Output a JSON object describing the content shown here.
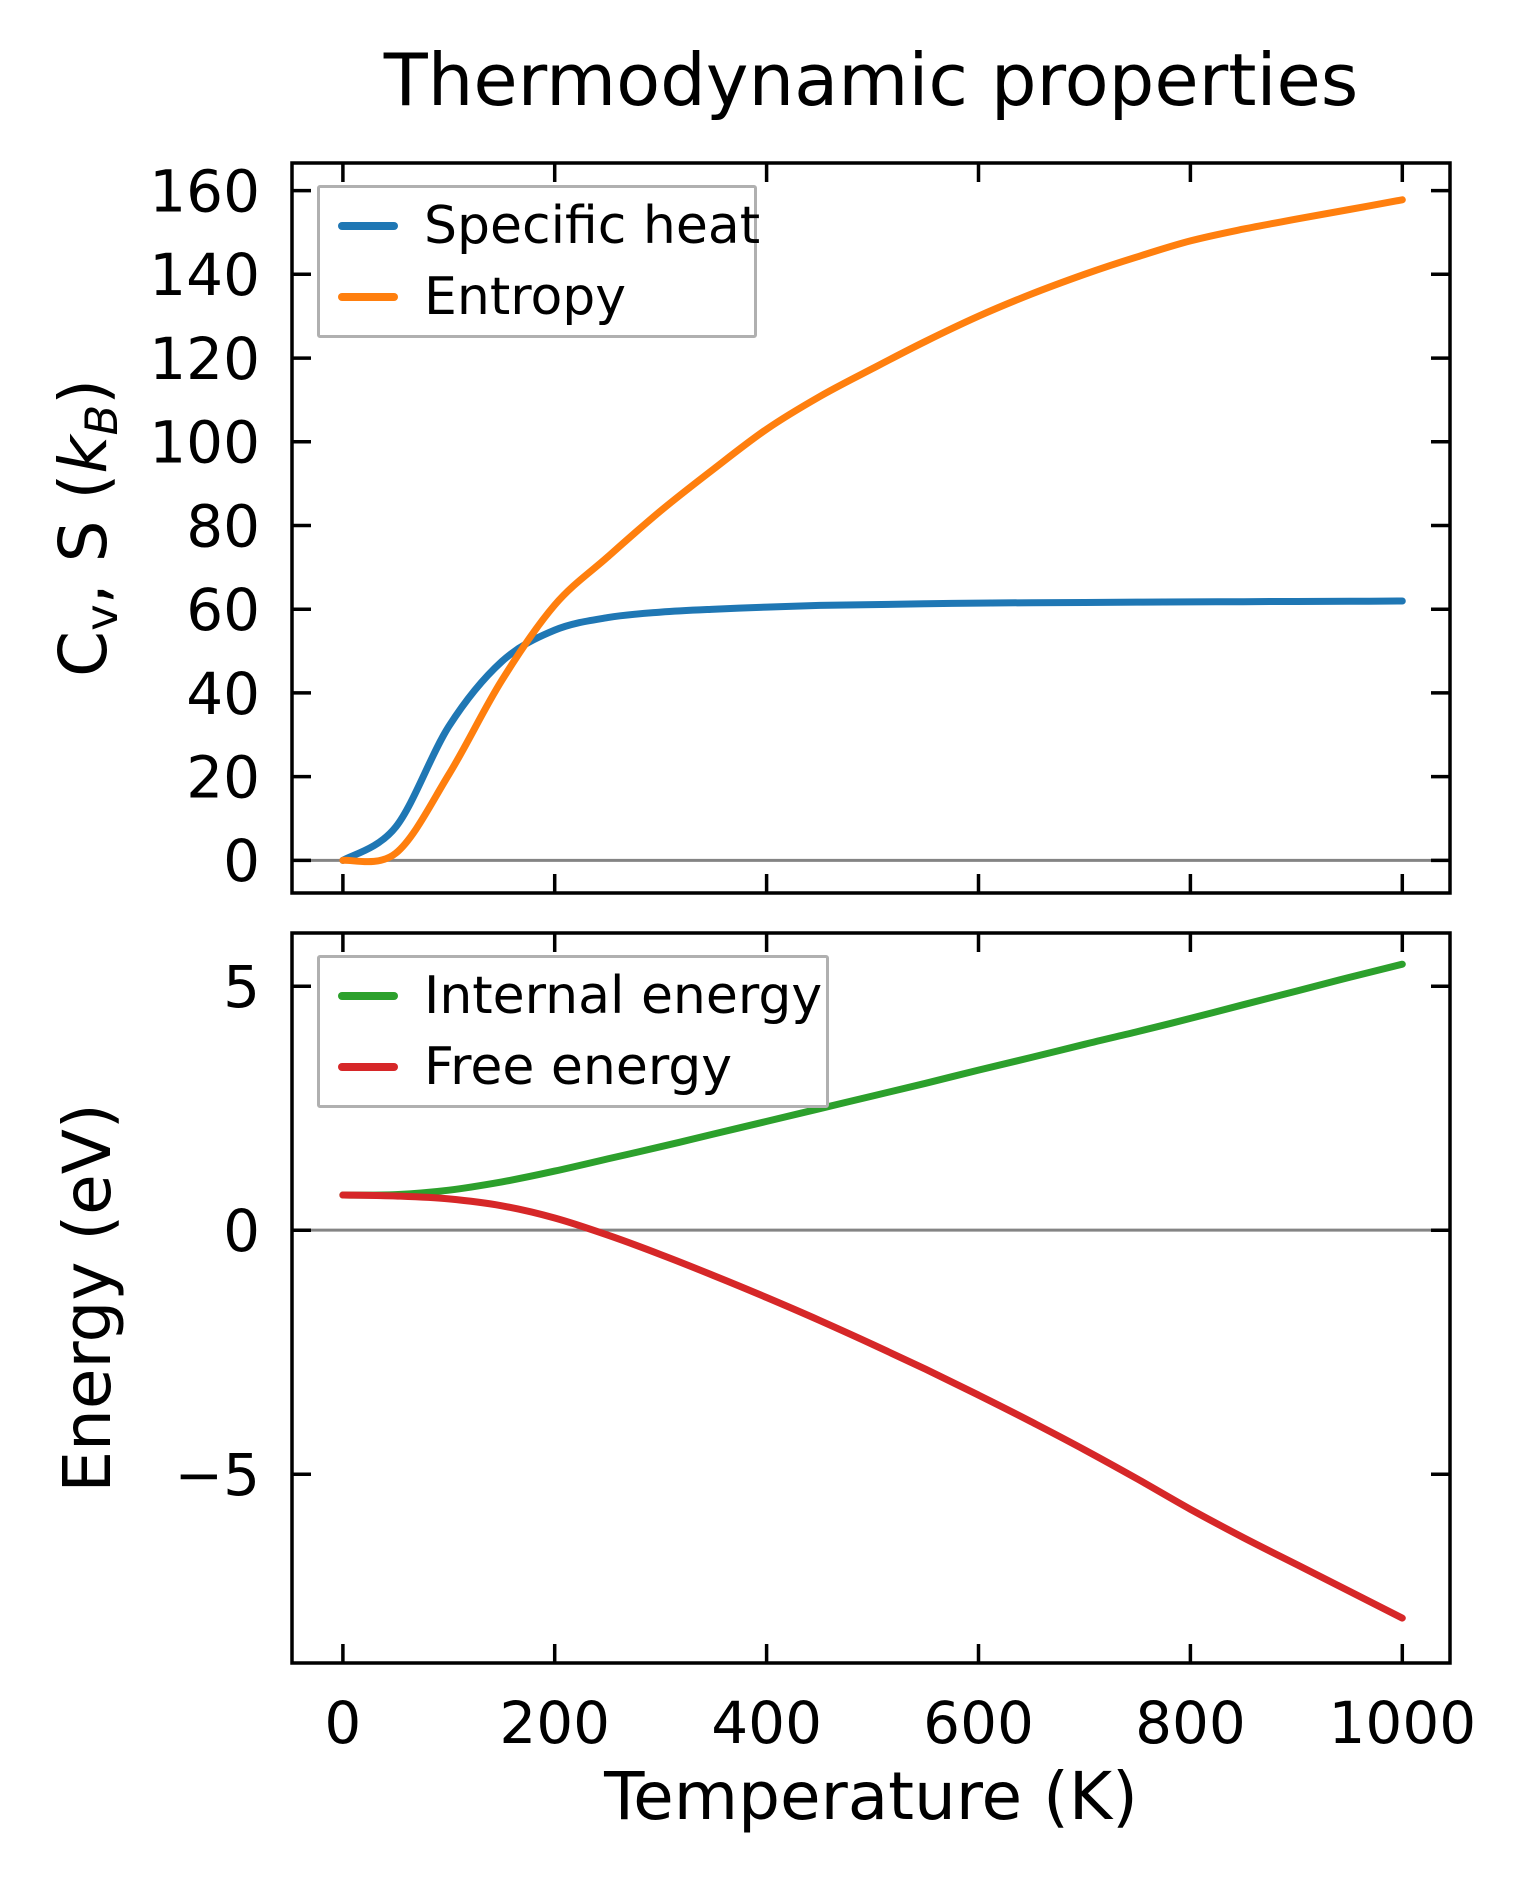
{
  "figure": {
    "title": "Thermodynamic properties",
    "background": "#ffffff",
    "spine_color": "#000000",
    "zero_line_color": "#848484",
    "legend_frame_color": "#b0b0b0"
  },
  "chart_data": [
    {
      "type": "line",
      "title": "",
      "xlabel": "",
      "ylabel": "Cv, S (kB)",
      "ylabel_rich": {
        "base": "C",
        "base_sub": "v",
        "mid": ", S (",
        "var": "k",
        "var_sub": "B",
        "end": ")"
      },
      "xlim": [
        -48,
        1045
      ],
      "ylim": [
        -7.8,
        166.6
      ],
      "xticks": [
        0,
        200,
        400,
        600,
        800,
        1000
      ],
      "yticks": [
        0,
        20,
        40,
        60,
        80,
        100,
        120,
        140,
        160
      ],
      "grid": false,
      "zero_line": 0,
      "legend_position": "upper left",
      "x": [
        0,
        50,
        100,
        150,
        200,
        250,
        300,
        350,
        400,
        450,
        500,
        550,
        600,
        650,
        700,
        750,
        800,
        850,
        900,
        950,
        1000
      ],
      "series": [
        {
          "name": "Specific heat",
          "color": "#1f77b4",
          "values": [
            0,
            8,
            32,
            47.5,
            55,
            58,
            59.3,
            60,
            60.5,
            60.9,
            61.1,
            61.3,
            61.45,
            61.55,
            61.6,
            61.7,
            61.75,
            61.8,
            61.85,
            61.9,
            61.95
          ]
        },
        {
          "name": "Entropy",
          "color": "#ff7f0e",
          "values": [
            0,
            1.7,
            20.5,
            43,
            61,
            72.5,
            83.5,
            93.5,
            103,
            110.8,
            117.5,
            124,
            130,
            135.3,
            140,
            144.2,
            148,
            150.8,
            153.2,
            155.5,
            157.8
          ]
        }
      ]
    },
    {
      "type": "line",
      "title": "",
      "xlabel": "Temperature (K)",
      "ylabel": "Energy (eV)",
      "xlim": [
        -48,
        1045
      ],
      "ylim": [
        -8.87,
        6.09
      ],
      "xticks": [
        0,
        200,
        400,
        600,
        800,
        1000
      ],
      "yticks": [
        -5,
        0,
        5
      ],
      "grid": false,
      "zero_line": 0,
      "legend_position": "upper left",
      "x": [
        0,
        50,
        100,
        150,
        200,
        250,
        300,
        350,
        400,
        450,
        500,
        550,
        600,
        650,
        700,
        750,
        800,
        850,
        900,
        950,
        1000
      ],
      "series": [
        {
          "name": "Internal energy",
          "color": "#2ca02c",
          "values": [
            0.72,
            0.73,
            0.82,
            0.99,
            1.21,
            1.46,
            1.71,
            1.97,
            2.23,
            2.49,
            2.75,
            3.01,
            3.28,
            3.54,
            3.81,
            4.07,
            4.34,
            4.62,
            4.9,
            5.18,
            5.45
          ]
        },
        {
          "name": "Free energy",
          "color": "#d62728",
          "values": [
            0.72,
            0.7,
            0.64,
            0.5,
            0.25,
            -0.1,
            -0.5,
            -0.93,
            -1.38,
            -1.85,
            -2.34,
            -2.85,
            -3.38,
            -3.93,
            -4.5,
            -5.1,
            -5.72,
            -6.3,
            -6.85,
            -7.4,
            -7.95
          ]
        }
      ]
    }
  ]
}
